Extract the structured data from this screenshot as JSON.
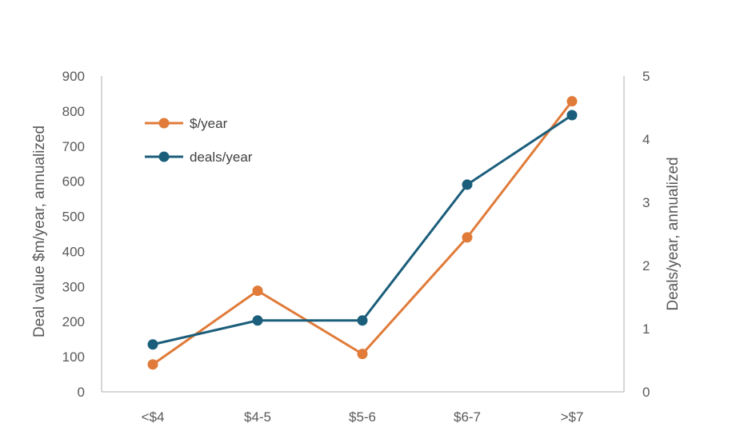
{
  "chart_data": {
    "type": "line",
    "categories": [
      "<$4",
      "$4-5",
      "$5-6",
      "$6-7",
      ">$7"
    ],
    "y_axis_left": {
      "label": "Deal value $m/year, annualized",
      "ylim": [
        0,
        900
      ],
      "ticks": [
        "0",
        "100",
        "200",
        "300",
        "400",
        "500",
        "600",
        "700",
        "800",
        "900"
      ]
    },
    "y_axis_right": {
      "label": "Deals/year, annualized",
      "ylim": [
        0,
        5
      ],
      "ticks": [
        "0",
        "1",
        "2",
        "3",
        "4",
        "5"
      ]
    },
    "series": [
      {
        "name": "$/year",
        "axis": "left",
        "color": "#E07B39",
        "values": [
          78,
          288,
          108,
          440,
          828
        ]
      },
      {
        "name": "deals/year",
        "axis": "right",
        "color": "#1B5E7B",
        "values": [
          0.75,
          1.13,
          1.13,
          3.28,
          4.38
        ]
      }
    ],
    "grid": false,
    "legend_position": "top-left"
  }
}
